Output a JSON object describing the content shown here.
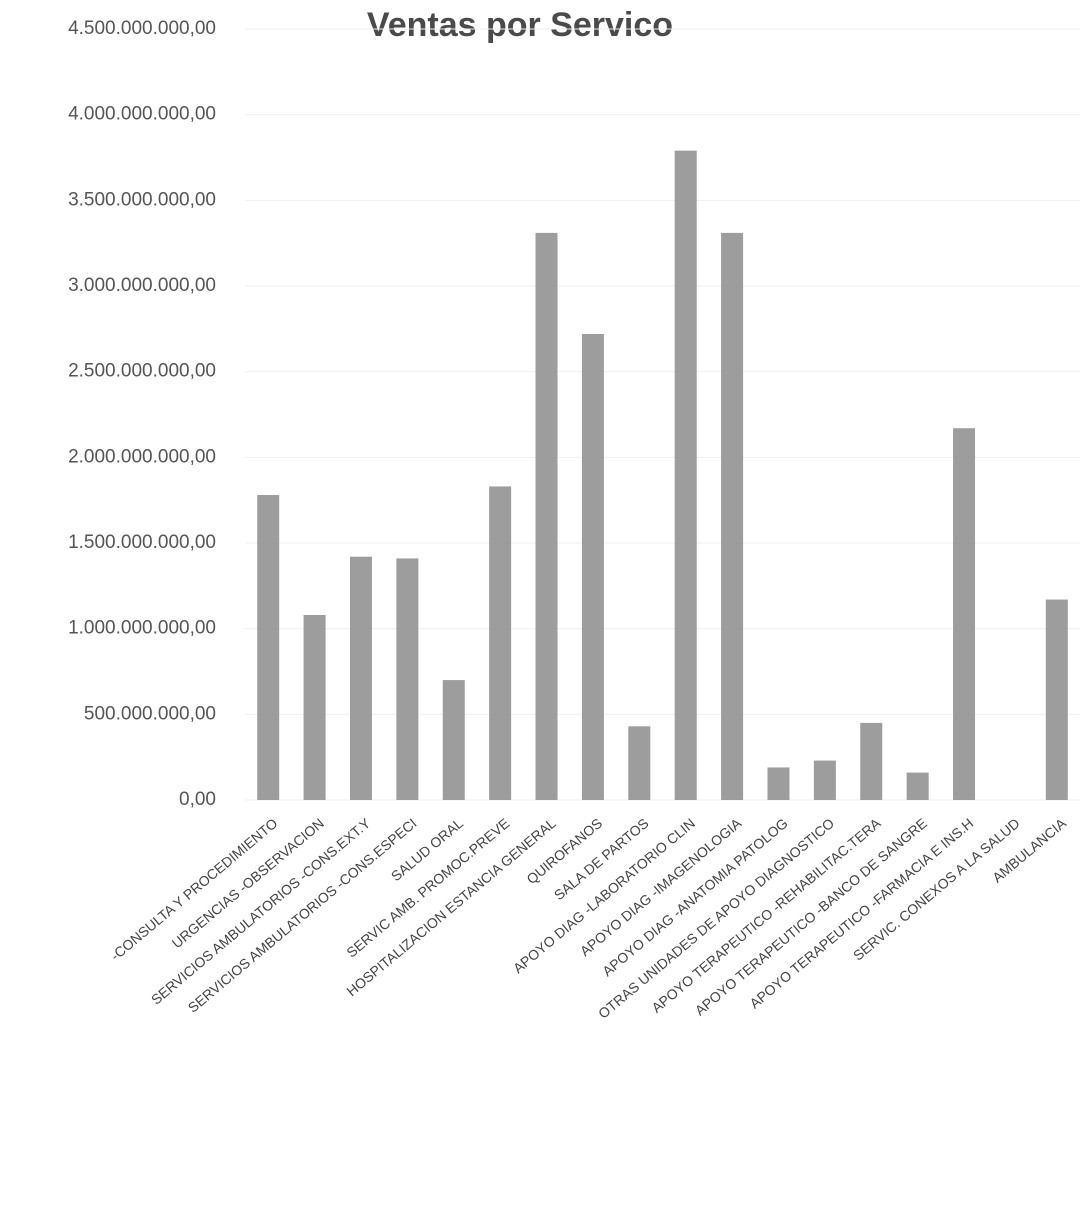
{
  "chart_data": {
    "type": "bar",
    "title": "Ventas por Servico",
    "categories": [
      "-CONSULTA Y PROCEDIMIENTO",
      "URGENCIAS -OBSERVACION",
      "SERVICIOS AMBULATORIOS -CONS.EXT.Y",
      "SERVICIOS AMBULATORIOS -CONS.ESPECI",
      "SALUD ORAL",
      "SERVIC AMB. PROMOC.PREVE",
      "HOSPITALIZACION ESTANCIA GENERAL",
      "QUIROFANOS",
      "SALA DE PARTOS",
      "APOYO DIAG -LABORATORIO CLIN",
      "APOYO DIAG -IMAGENOLOGIA",
      "APOYO DIAG -ANATOMIA PATOLOG",
      "OTRAS UNIDADES DE APOYO DIAGNOSTICO",
      "APOYO TERAPEUTICO -REHABILITAC.TERA",
      "APOYO TERAPEUTICO -BANCO DE SANGRE",
      "APOYO TERAPEUTICO -FARMACIA E INS.H",
      "SERVIC. CONEXOS A LA SALUD",
      "AMBULANCIA"
    ],
    "values": [
      1780000000,
      1080000000,
      1420000000,
      1410000000,
      700000000,
      1830000000,
      3310000000,
      2720000000,
      430000000,
      3790000000,
      3310000000,
      190000000,
      230000000,
      450000000,
      160000000,
      2170000000,
      null,
      1170000000
    ],
    "color": "#8c8c8c",
    "ylim": [
      0,
      4500000000
    ],
    "yticks": [
      {
        "value": 0,
        "label": "0,00"
      },
      {
        "value": 500000000,
        "label": "500.000.000,00"
      },
      {
        "value": 1000000000,
        "label": "1.000.000.000,00"
      },
      {
        "value": 1500000000,
        "label": "1.500.000.000,00"
      },
      {
        "value": 2000000000,
        "label": "2.000.000.000,00"
      },
      {
        "value": 2500000000,
        "label": "2.500.000.000,00"
      },
      {
        "value": 3000000000,
        "label": "3.000.000.000,00"
      },
      {
        "value": 3500000000,
        "label": "3.500.000.000,00"
      },
      {
        "value": 4000000000,
        "label": "4.000.000.000,00"
      },
      {
        "value": 4500000000,
        "label": "4.500.000.000,00"
      }
    ],
    "grid": true
  }
}
